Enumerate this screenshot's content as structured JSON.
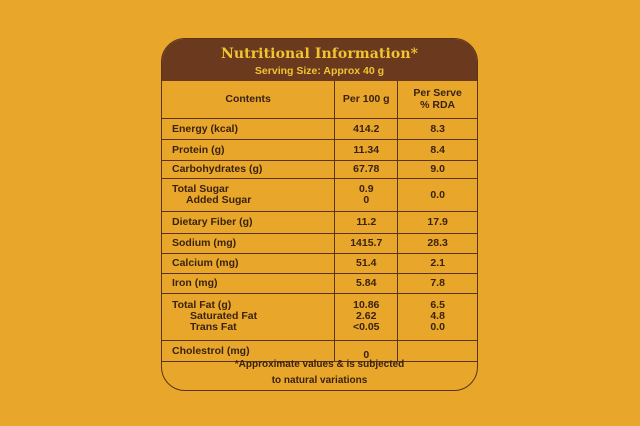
{
  "header": {
    "title": "Nutritional Information*",
    "serving": "Serving Size: Approx 40 g"
  },
  "columns": {
    "contents": "Contents",
    "per100": "Per 100 g",
    "perServeLine1": "Per Serve",
    "perServeLine2": "% RDA"
  },
  "rows": [
    {
      "name": "Energy (kcal)",
      "per100": "414.2",
      "rda": "8.3"
    },
    {
      "name": "Protein (g)",
      "per100": "11.34",
      "rda": "8.4"
    },
    {
      "name": "Carbohydrates (g)",
      "per100": "67.78",
      "rda": "9.0"
    },
    {
      "name": "Total Sugar",
      "sub": "Added Sugar",
      "per100": "0.9",
      "per100_sub": "0",
      "rda": "0.0"
    },
    {
      "name": "Dietary Fiber (g)",
      "per100": "11.2",
      "rda": "17.9"
    },
    {
      "name": "Sodium (mg)",
      "per100": "1415.7",
      "rda": "28.3"
    },
    {
      "name": "Calcium (mg)",
      "per100": "51.4",
      "rda": "2.1"
    },
    {
      "name": "Iron (mg)",
      "per100": "5.84",
      "rda": "7.8"
    },
    {
      "name": "Total Fat (g)",
      "sub1": "Saturated Fat",
      "sub2": "Trans Fat",
      "per100": "10.86",
      "per100_sub1": "2.62",
      "per100_sub2": "<0.05",
      "rda": "6.5",
      "rda_sub1": "4.8",
      "rda_sub2": "0.0"
    },
    {
      "name": "Cholestrol (mg)",
      "per100": "0",
      "rda": ""
    }
  ],
  "footnote": {
    "line1": "*Approximate values & is subjected",
    "line2": "to natural variations"
  },
  "colors": {
    "background": "#E8A62B",
    "header": "#6B3A1E",
    "title": "#F2C431",
    "border": "#5A3318"
  }
}
